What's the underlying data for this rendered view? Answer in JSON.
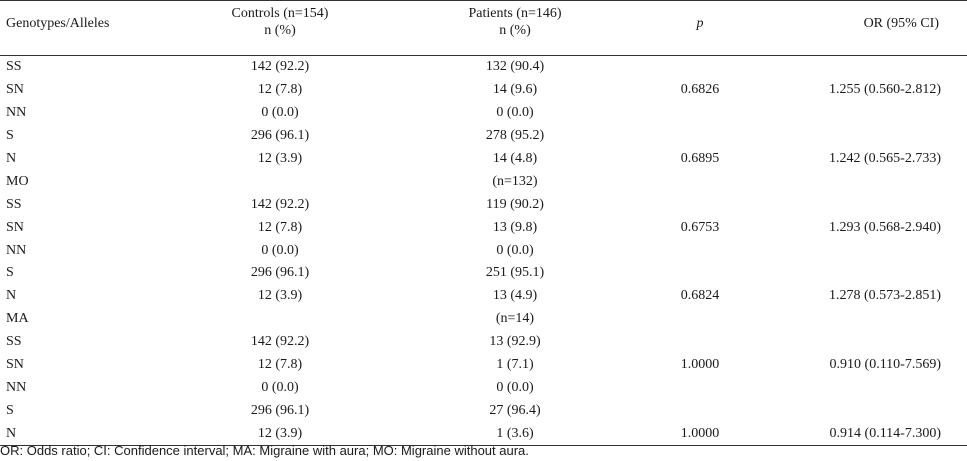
{
  "header": {
    "genotypes": "Genotypes/Alleles",
    "controls": "Controls (n=154)",
    "controls_unit": "n (%)",
    "patients": "Patients (n=146)",
    "patients_unit": "n (%)",
    "p": "p",
    "or": "OR (95% CI)"
  },
  "rows": [
    [
      "SS",
      "142 (92.2)",
      "132 (90.4)",
      "",
      ""
    ],
    [
      "SN",
      "12 (7.8)",
      "14 (9.6)",
      "0.6826",
      "1.255 (0.560-2.812)"
    ],
    [
      "NN",
      "0 (0.0)",
      "0 (0.0)",
      "",
      ""
    ],
    [
      "S",
      "296 (96.1)",
      "278 (95.2)",
      "",
      ""
    ],
    [
      "N",
      "12 (3.9)",
      "14 (4.8)",
      "0.6895",
      "1.242 (0.565-2.733)"
    ],
    [
      "MO",
      "",
      "(n=132)",
      "",
      ""
    ],
    [
      "SS",
      "142 (92.2)",
      "119 (90.2)",
      "",
      ""
    ],
    [
      "SN",
      "12 (7.8)",
      "13 (9.8)",
      "0.6753",
      "1.293 (0.568-2.940)"
    ],
    [
      "NN",
      "0 (0.0)",
      "0 (0.0)",
      "",
      ""
    ],
    [
      "S",
      "296 (96.1)",
      "251 (95.1)",
      "",
      ""
    ],
    [
      "N",
      "12 (3.9)",
      "13 (4.9)",
      "0.6824",
      "1.278 (0.573-2.851)"
    ],
    [
      "MA",
      "",
      "(n=14)",
      "",
      ""
    ],
    [
      "SS",
      "142 (92.2)",
      "13 (92.9)",
      "",
      ""
    ],
    [
      "SN",
      "12 (7.8)",
      "1 (7.1)",
      "1.0000",
      "0.910 (0.110-7.569)"
    ],
    [
      "NN",
      "0 (0.0)",
      "0 (0.0)",
      "",
      ""
    ],
    [
      "S",
      "296 (96.1)",
      "27 (96.4)",
      "",
      ""
    ],
    [
      "N",
      "12 (3.9)",
      "1 (3.6)",
      "1.0000",
      "0.914 (0.114-7.300)"
    ]
  ],
  "footnote": "OR: Odds ratio; CI: Confidence interval; MA: Migraine with aura; MO: Migraine without aura."
}
